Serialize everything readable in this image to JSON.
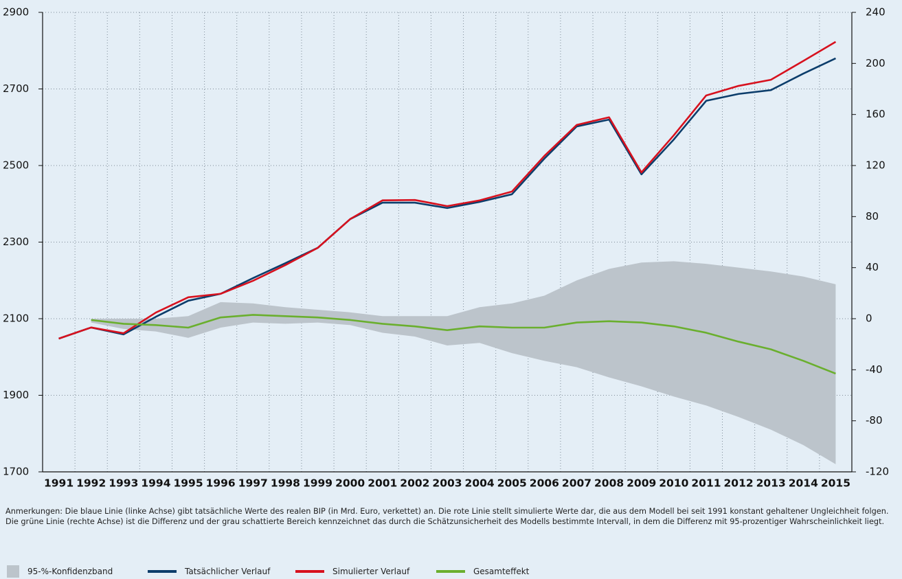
{
  "chart_data": {
    "type": "line",
    "categories": [
      "1991",
      "1992",
      "1993",
      "1994",
      "1995",
      "1996",
      "1997",
      "1998",
      "1999",
      "2000",
      "2001",
      "2002",
      "2003",
      "2004",
      "2005",
      "2006",
      "2007",
      "2008",
      "2009",
      "2010",
      "2011",
      "2012",
      "2013",
      "2014",
      "2015"
    ],
    "ylim": [
      1700,
      2900
    ],
    "yticks": [
      1700,
      1900,
      2100,
      2300,
      2500,
      2700,
      2900
    ],
    "y2lim": [
      -120,
      240
    ],
    "y2ticks": [
      -120,
      -80,
      -40,
      0,
      40,
      80,
      120,
      160,
      200,
      240
    ],
    "grid": true,
    "band": {
      "name": "95-%-Konfidenzband",
      "color": "#bcc4cb",
      "axis": "y2",
      "upper": [
        null,
        0,
        0,
        0,
        2,
        13,
        12,
        9,
        7,
        5,
        2,
        2,
        2,
        9,
        12,
        18,
        30,
        39,
        44,
        45,
        43,
        40,
        37,
        33,
        27
      ],
      "lower": [
        null,
        -3,
        -8,
        -10,
        -15,
        -7,
        -3,
        -4,
        -3,
        -5,
        -11,
        -14,
        -21,
        -19,
        -27,
        -33,
        -38,
        -46,
        -53,
        -61,
        -68,
        -77,
        -87,
        -99,
        -114
      ]
    },
    "series": [
      {
        "name": "Tatsächlicher Verlauf",
        "color": "#0c3d6b",
        "values": [
          2048,
          2077,
          2059,
          2105,
          2147,
          2165,
          2206,
          2245,
          2285,
          2360,
          2403,
          2403,
          2389,
          2405,
          2425,
          2518,
          2602,
          2620,
          2477,
          2568,
          2669,
          2687,
          2697,
          2740,
          2780
        ]
      },
      {
        "name": "Simulierter Verlauf",
        "color": "#d7111e",
        "values": [
          2048,
          2077,
          2062,
          2116,
          2156,
          2165,
          2199,
          2240,
          2285,
          2360,
          2409,
          2410,
          2394,
          2409,
          2432,
          2525,
          2606,
          2626,
          2482,
          2579,
          2683,
          2708,
          2724,
          2773,
          2823
        ]
      },
      {
        "name": "Gesamteffekt",
        "color": "#6aaf2e",
        "axis": "y2",
        "values": [
          null,
          -1,
          -4,
          -5,
          -7,
          1,
          3,
          2,
          1,
          -1,
          -4,
          -6,
          -9,
          -6,
          -7,
          -7,
          -3,
          -2,
          -3,
          -6,
          -11,
          -18,
          -24,
          -33,
          -43
        ]
      }
    ],
    "note": "Anmerkungen: Die blaue Linie (linke Achse) gibt tatsächliche Werte des realen BIP (in Mrd. Euro, verkettet) an. Die rote Linie stellt simulierte Werte dar, die aus dem Modell bei seit 1991 konstant gehaltener Ungleichheit folgen. Die grüne Linie (rechte Achse) ist die Differenz und der grau schattierte Bereich kennzeichnet das durch die Schätzunsicherheit des Modells bestimmte Intervall, in dem die Differenz mit 95-prozentiger Wahrscheinlichkeit liegt."
  }
}
